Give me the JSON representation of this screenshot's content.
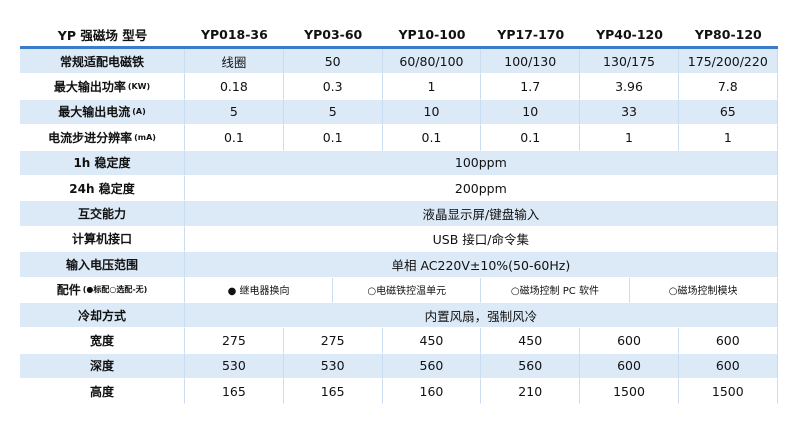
{
  "header": {
    "title": "YP 强磁场 型号",
    "models": [
      "YP018-36",
      "YP03-60",
      "YP10-100",
      "YP17-170",
      "YP40-120",
      "YP80-120"
    ]
  },
  "rows": [
    {
      "label": "常规适配电磁铁",
      "cells": [
        "线圈",
        "50",
        "60/80/100",
        "100/130",
        "130/175",
        "175/200/220"
      ]
    },
    {
      "label": "最大输出功率",
      "unit": "(KW)",
      "cells": [
        "0.18",
        "0.3",
        "1",
        "1.7",
        "3.96",
        "7.8"
      ]
    },
    {
      "label": "最大输出电流",
      "unit": "(A)",
      "cells": [
        "5",
        "5",
        "10",
        "10",
        "33",
        "65"
      ]
    },
    {
      "label": "电流步进分辨率",
      "unit": "(mA)",
      "cells": [
        "0.1",
        "0.1",
        "0.1",
        "0.1",
        "1",
        "1"
      ]
    },
    {
      "label": "1h 稳定度",
      "cells": [
        "100ppm"
      ]
    },
    {
      "label": "24h 稳定度",
      "cells": [
        "200ppm"
      ]
    },
    {
      "label": "互交能力",
      "cells": [
        "液晶显示屏/键盘输入"
      ]
    },
    {
      "label": "计算机接口",
      "cells": [
        "USB 接口/命令集"
      ]
    },
    {
      "label": "输入电压范围",
      "cells": [
        "单相 AC220V±10%(50-60Hz)"
      ]
    },
    {
      "label": "配件",
      "unit": "(●标配○选配-无)",
      "cells": [
        "● 继电器换向",
        "○电磁铁控温单元",
        "○磁场控制 PC 软件",
        "○磁场控制模块"
      ]
    },
    {
      "label": "冷却方式",
      "cells": [
        "内置风扇，强制风冷"
      ]
    },
    {
      "label": "宽度",
      "cells": [
        "275",
        "275",
        "450",
        "450",
        "600",
        "600"
      ]
    },
    {
      "label": "深度",
      "cells": [
        "530",
        "530",
        "560",
        "560",
        "600",
        "600"
      ]
    },
    {
      "label": "高度",
      "cells": [
        "165",
        "165",
        "160",
        "210",
        "1500",
        "1500"
      ]
    }
  ]
}
